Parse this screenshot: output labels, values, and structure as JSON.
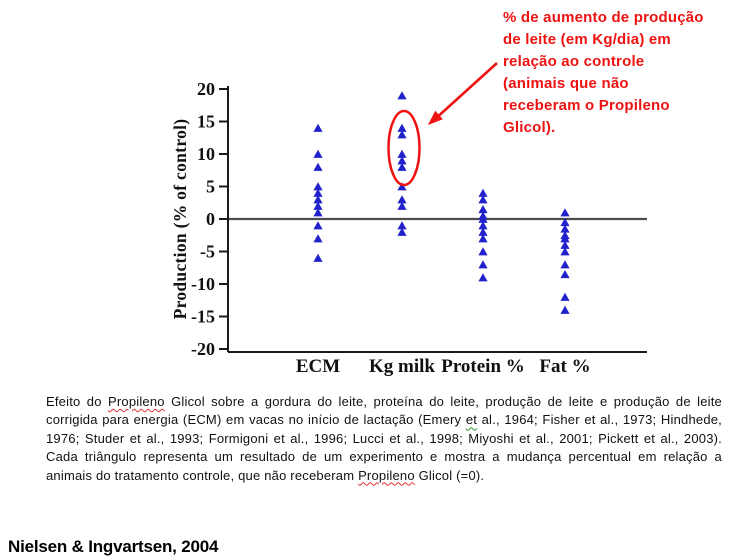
{
  "colors": {
    "accent_red": "#ee1212",
    "marker_blue": "#2222cc",
    "zero_line": "#4d4d4d",
    "axis": "#1a1a1a"
  },
  "chart_data": {
    "type": "scatter",
    "marker": "triangle",
    "marker_color": "#2222cc",
    "title": "",
    "xlabel": "",
    "ylabel": "Production (% of control)",
    "ylim": [
      -20,
      20
    ],
    "yticks": [
      20,
      15,
      10,
      5,
      0,
      -5,
      -10,
      -15,
      -20
    ],
    "grid": false,
    "legend": "none",
    "categories": [
      "ECM",
      "Kg milk",
      "Protein %",
      "Fat %"
    ],
    "series": [
      {
        "name": "ECM",
        "values": [
          14,
          10,
          8,
          5,
          4,
          3,
          2,
          1,
          -1,
          -3,
          -6
        ]
      },
      {
        "name": "Kg milk",
        "values": [
          19,
          14,
          13,
          10,
          9,
          8,
          5,
          3,
          2,
          -1,
          -2
        ]
      },
      {
        "name": "Protein %",
        "values": [
          4,
          3,
          1.5,
          0.5,
          0,
          -1,
          -2,
          -3,
          -5,
          -7,
          -9
        ]
      },
      {
        "name": "Fat %",
        "values": [
          1,
          -0.5,
          -1.5,
          -2.5,
          -3,
          -4,
          -5,
          -7,
          -8.5,
          -12,
          -14
        ]
      }
    ],
    "highlight": {
      "category": "Kg milk",
      "circled_values": [
        14,
        13,
        10,
        9,
        8
      ]
    }
  },
  "annotation": {
    "text": "% de aumento de produção\nde leite (em Kg/dia) em\nrelação ao controle\n(animais que não\nreceberam o Propileno\nGlicol)."
  },
  "caption": {
    "segments": [
      {
        "text": "Efeito do ",
        "squiggle": null
      },
      {
        "text": "Propileno",
        "squiggle": "red"
      },
      {
        "text": " Glicol sobre a gordura do leite, proteína do leite, produção de leite e produção de leite corrigida para energia (ECM) em vacas no início de lactação (Emery ",
        "squiggle": null
      },
      {
        "text": "et",
        "squiggle": "green"
      },
      {
        "text": " al., 1964; Fisher et al., 1973; Hindhede, 1976; Studer et al., 1993; Formigoni et al., 1996; Lucci et al., 1998; Miyoshi et al., 2001; Pickett et al., 2003).  Cada triângulo representa um resultado de um experimento e mostra a mudança percentual em relação a animais do tratamento controle, que não receberam ",
        "squiggle": null
      },
      {
        "text": "Propileno",
        "squiggle": "red"
      },
      {
        "text": " Glicol (=0).",
        "squiggle": null
      }
    ]
  },
  "source": {
    "text": "Nielsen & Ingvartsen, 2004"
  }
}
